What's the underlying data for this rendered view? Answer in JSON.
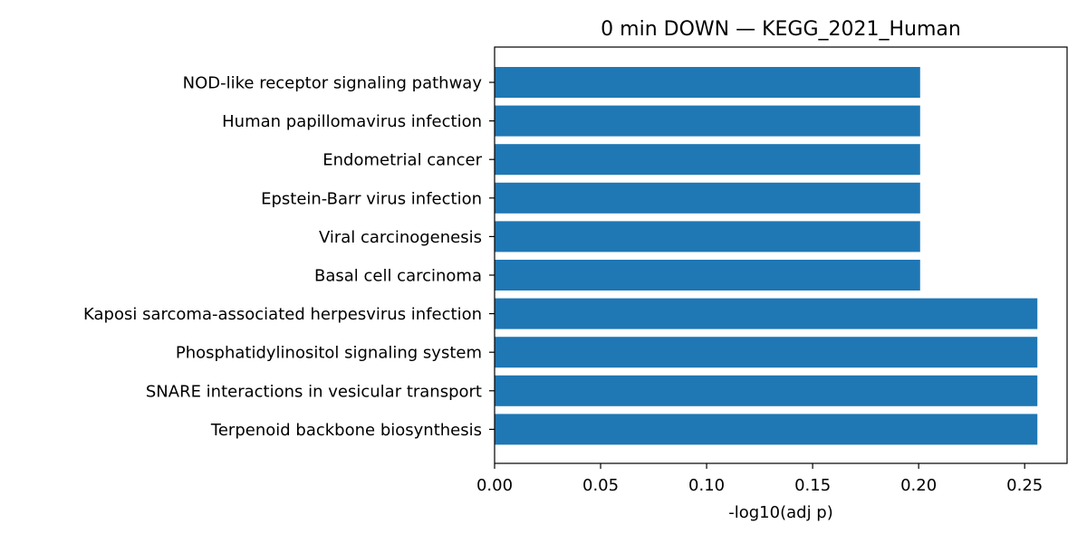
{
  "chart_data": {
    "type": "bar",
    "orientation": "horizontal",
    "title": "0 min DOWN — KEGG_2021_Human",
    "xlabel": "-log10(adj p)",
    "ylabel": "",
    "xlim": [
      0,
      0.27
    ],
    "xticks": [
      0.0,
      0.05,
      0.1,
      0.15,
      0.2,
      0.25
    ],
    "xtick_labels": [
      "0.00",
      "0.05",
      "0.10",
      "0.15",
      "0.20",
      "0.25"
    ],
    "categories": [
      "NOD-like receptor signaling pathway",
      "Human papillomavirus infection",
      "Endometrial cancer",
      "Epstein-Barr virus infection",
      "Viral carcinogenesis",
      "Basal cell carcinoma",
      "Kaposi sarcoma-associated herpesvirus infection",
      "Phosphatidylinositol signaling system",
      "SNARE interactions in vesicular transport",
      "Terpenoid backbone biosynthesis"
    ],
    "values": [
      0.2007,
      0.2007,
      0.2007,
      0.2007,
      0.2007,
      0.2007,
      0.256,
      0.256,
      0.256,
      0.256
    ],
    "bar_color": "#1f77b4",
    "grid": false,
    "legend": "none"
  }
}
